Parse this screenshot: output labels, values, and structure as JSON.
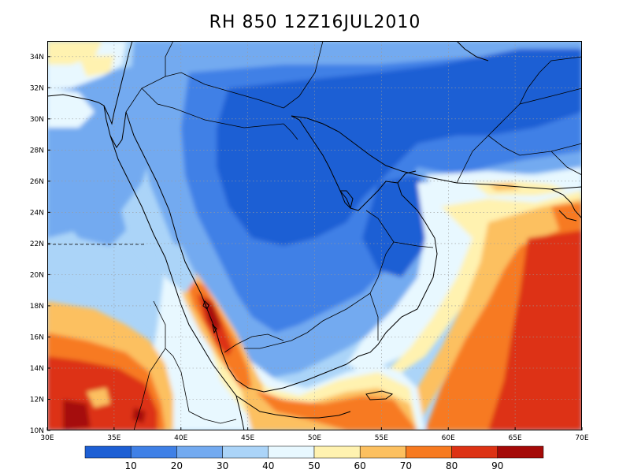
{
  "title": "RH 850  12Z16JUL2010",
  "map": {
    "lon_range": [
      30,
      70
    ],
    "lat_range": [
      10,
      35
    ],
    "lon_labels": [
      "30E",
      "35E",
      "40E",
      "45E",
      "50E",
      "55E",
      "60E",
      "65E",
      "70E"
    ],
    "lat_labels": [
      "10N",
      "12N",
      "14N",
      "16N",
      "18N",
      "20N",
      "22N",
      "24N",
      "26N",
      "28N",
      "30N",
      "32N",
      "34N"
    ],
    "gridlines": "dotted",
    "fill_colors": {
      "c0": "#1d5fd4",
      "c1": "#3f80e6",
      "c2": "#73aaf0",
      "c3": "#abd4f8",
      "c4": "#e8f8ff",
      "c5": "#fff2b0",
      "c6": "#fcc060",
      "c7": "#f77a20",
      "c8": "#dd3214",
      "c9": "#a50a08"
    }
  },
  "colorbar": {
    "labels": [
      "10",
      "20",
      "30",
      "40",
      "50",
      "60",
      "70",
      "80",
      "90"
    ],
    "colors": [
      "#1d5fd4",
      "#3f80e6",
      "#73aaf0",
      "#abd4f8",
      "#e8f8ff",
      "#fff2b0",
      "#fcc060",
      "#f77a20",
      "#dd3214",
      "#a50a08"
    ]
  }
}
